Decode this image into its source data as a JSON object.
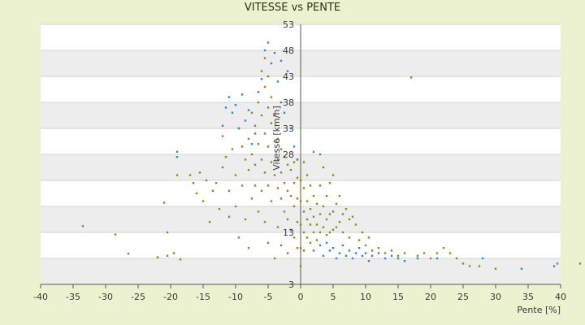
{
  "chart_data": {
    "type": "scatter",
    "title": "VITESSE vs PENTE",
    "xlabel": "Pente [%]",
    "ylabel": "Vitesse [km/h]",
    "xlim": [
      -40,
      40
    ],
    "ylim": [
      3,
      53
    ],
    "x_ticks": [
      -40,
      -35,
      -30,
      -25,
      -20,
      -15,
      -10,
      -5,
      0,
      5,
      10,
      15,
      20,
      25,
      30,
      35,
      40
    ],
    "y_ticks": [
      3,
      8,
      13,
      18,
      23,
      28,
      33,
      38,
      43,
      48,
      53
    ],
    "y_tick_labels": [
      "3",
      "",
      "13",
      "",
      "",
      "28",
      "33",
      "38",
      "43",
      "48",
      "53"
    ],
    "grid": true,
    "legend": "none",
    "colors": {
      "series_olive": "#7f8f1f",
      "series_blue": "#2e86d6",
      "band": "#ededed",
      "plot_bg": "#ffffff"
    },
    "series": [
      {
        "marker_color": "#7f8f1f",
        "points": [
          [
            -33.5,
            14.2
          ],
          [
            -28.5,
            12.6
          ],
          [
            -26.5,
            8.9
          ],
          [
            -22.0,
            8.2
          ],
          [
            -20.5,
            8.5
          ],
          [
            -19.5,
            9.0
          ],
          [
            -18.5,
            7.8
          ],
          [
            -21.0,
            18.7
          ],
          [
            -20.5,
            13.0
          ],
          [
            -19.0,
            24.0
          ],
          [
            -17.0,
            24.0
          ],
          [
            -16.5,
            22.5
          ],
          [
            -16.0,
            20.5
          ],
          [
            -15.5,
            24.5
          ],
          [
            -15.0,
            19.0
          ],
          [
            -14.5,
            23.0
          ],
          [
            -14.0,
            15.0
          ],
          [
            -13.5,
            21.0
          ],
          [
            -13.0,
            22.5
          ],
          [
            -12.5,
            17.5
          ],
          [
            -12.0,
            25.5
          ],
          [
            -12.0,
            31.5
          ],
          [
            -11.5,
            27.5
          ],
          [
            -11.0,
            21.0
          ],
          [
            -11.0,
            16.0
          ],
          [
            -10.5,
            29.0
          ],
          [
            -10.0,
            24.0
          ],
          [
            -10.0,
            18.0
          ],
          [
            -9.5,
            33.0
          ],
          [
            -9.5,
            12.0
          ],
          [
            -9.0,
            29.5
          ],
          [
            -9.0,
            22.0
          ],
          [
            -8.5,
            27.0
          ],
          [
            -8.5,
            15.5
          ],
          [
            -8.0,
            31.0
          ],
          [
            -8.0,
            25.0
          ],
          [
            -8.0,
            10.0
          ],
          [
            -7.5,
            36.0
          ],
          [
            -7.5,
            28.0
          ],
          [
            -7.5,
            19.5
          ],
          [
            -7.0,
            33.5
          ],
          [
            -7.0,
            26.0
          ],
          [
            -7.0,
            22.0
          ],
          [
            -6.5,
            38.0
          ],
          [
            -6.5,
            30.0
          ],
          [
            -6.5,
            17.0
          ],
          [
            -6.0,
            44.0
          ],
          [
            -6.0,
            35.5
          ],
          [
            -6.0,
            27.0
          ],
          [
            -6.0,
            21.0
          ],
          [
            -5.5,
            46.5
          ],
          [
            -5.5,
            41.0
          ],
          [
            -5.5,
            32.0
          ],
          [
            -5.5,
            24.5
          ],
          [
            -5.5,
            15.0
          ],
          [
            -5.0,
            43.0
          ],
          [
            -5.0,
            37.0
          ],
          [
            -5.0,
            29.5
          ],
          [
            -5.0,
            22.0
          ],
          [
            -5.0,
            11.0
          ],
          [
            -4.5,
            39.0
          ],
          [
            -4.5,
            34.0
          ],
          [
            -4.5,
            26.5
          ],
          [
            -4.5,
            19.0
          ],
          [
            -4.0,
            35.5
          ],
          [
            -4.0,
            30.5
          ],
          [
            -4.0,
            24.0
          ],
          [
            -4.0,
            8.0
          ],
          [
            -3.5,
            31.0
          ],
          [
            -3.5,
            27.0
          ],
          [
            -3.5,
            21.5
          ],
          [
            -3.5,
            14.0
          ],
          [
            -3.0,
            29.0
          ],
          [
            -3.0,
            24.5
          ],
          [
            -3.0,
            19.5
          ],
          [
            -3.0,
            10.5
          ],
          [
            -2.5,
            27.5
          ],
          [
            -2.5,
            22.5
          ],
          [
            -2.5,
            17.0
          ],
          [
            -2.0,
            26.0
          ],
          [
            -2.0,
            21.0
          ],
          [
            -2.0,
            15.5
          ],
          [
            -2.0,
            9.0
          ],
          [
            -1.5,
            25.0
          ],
          [
            -1.5,
            20.0
          ],
          [
            -1.5,
            13.5
          ],
          [
            -1.0,
            26.5
          ],
          [
            -1.0,
            22.5
          ],
          [
            -1.0,
            18.0
          ],
          [
            -1.0,
            12.0
          ],
          [
            -0.5,
            27.0
          ],
          [
            -0.5,
            23.5
          ],
          [
            -0.5,
            19.5
          ],
          [
            -0.5,
            15.0
          ],
          [
            -0.5,
            10.0
          ],
          [
            0.0,
            6.5
          ],
          [
            0.0,
            10.0
          ],
          [
            0.0,
            14.5
          ],
          [
            0.0,
            19.0
          ],
          [
            0.0,
            23.0
          ],
          [
            0.5,
            26.5
          ],
          [
            0.5,
            21.5
          ],
          [
            0.5,
            17.0
          ],
          [
            0.5,
            13.0
          ],
          [
            0.5,
            9.5
          ],
          [
            1.0,
            24.0
          ],
          [
            1.0,
            19.0
          ],
          [
            1.0,
            15.5
          ],
          [
            1.0,
            12.0
          ],
          [
            1.5,
            22.0
          ],
          [
            1.5,
            17.5
          ],
          [
            1.5,
            14.5
          ],
          [
            1.5,
            11.0
          ],
          [
            2.0,
            28.5
          ],
          [
            2.0,
            20.0
          ],
          [
            2.0,
            16.0
          ],
          [
            2.0,
            13.0
          ],
          [
            2.5,
            18.5
          ],
          [
            2.5,
            14.5
          ],
          [
            2.5,
            11.5
          ],
          [
            3.0,
            22.0
          ],
          [
            3.0,
            16.5
          ],
          [
            3.0,
            13.0
          ],
          [
            3.5,
            25.5
          ],
          [
            3.5,
            18.0
          ],
          [
            3.5,
            14.0
          ],
          [
            4.0,
            20.0
          ],
          [
            4.0,
            15.5
          ],
          [
            4.0,
            12.5
          ],
          [
            4.5,
            22.5
          ],
          [
            4.5,
            16.5
          ],
          [
            4.5,
            13.0
          ],
          [
            5.0,
            24.0
          ],
          [
            5.0,
            17.0
          ],
          [
            5.0,
            13.5
          ],
          [
            5.5,
            18.5
          ],
          [
            5.5,
            14.0
          ],
          [
            6.0,
            20.0
          ],
          [
            6.0,
            15.0
          ],
          [
            6.5,
            16.5
          ],
          [
            6.5,
            13.0
          ],
          [
            7.0,
            17.5
          ],
          [
            7.5,
            15.5
          ],
          [
            7.5,
            12.0
          ],
          [
            8.0,
            16.0
          ],
          [
            8.5,
            14.5
          ],
          [
            9.0,
            11.5
          ],
          [
            9.5,
            13.0
          ],
          [
            10.0,
            10.5
          ],
          [
            10.5,
            12.0
          ],
          [
            11.0,
            9.5
          ],
          [
            12.0,
            10.0
          ],
          [
            13.0,
            9.0
          ],
          [
            14.0,
            9.5
          ],
          [
            15.0,
            8.5
          ],
          [
            16.0,
            9.0
          ],
          [
            17.0,
            42.8
          ],
          [
            18.0,
            8.5
          ],
          [
            19.0,
            9.0
          ],
          [
            20.0,
            8.0
          ],
          [
            21.0,
            9.0
          ],
          [
            22.0,
            10.0
          ],
          [
            23.0,
            9.0
          ],
          [
            24.0,
            8.0
          ],
          [
            25.0,
            7.0
          ],
          [
            26.0,
            6.5
          ],
          [
            27.5,
            6.5
          ],
          [
            30.0,
            6.0
          ],
          [
            39.5,
            7.0
          ],
          [
            43.0,
            7.0
          ]
        ]
      },
      {
        "marker_color": "#2e86d6",
        "points": [
          [
            -19.0,
            28.5
          ],
          [
            -19.0,
            27.5
          ],
          [
            -12.0,
            33.5
          ],
          [
            -11.5,
            37.0
          ],
          [
            -11.0,
            39.0
          ],
          [
            -10.5,
            36.0
          ],
          [
            -10.0,
            37.5
          ],
          [
            -9.5,
            33.0
          ],
          [
            -9.0,
            39.5
          ],
          [
            -8.5,
            34.5
          ],
          [
            -8.0,
            36.5
          ],
          [
            -7.5,
            30.0
          ],
          [
            -7.0,
            32.0
          ],
          [
            -6.5,
            40.0
          ],
          [
            -6.0,
            42.5
          ],
          [
            -5.5,
            48.0
          ],
          [
            -5.0,
            49.5
          ],
          [
            -4.5,
            45.5
          ],
          [
            -4.0,
            47.5
          ],
          [
            -3.5,
            42.0
          ],
          [
            -3.0,
            38.0
          ],
          [
            -3.0,
            46.0
          ],
          [
            -2.5,
            36.0
          ],
          [
            -2.0,
            44.0
          ],
          [
            -1.5,
            33.0
          ],
          [
            -1.0,
            29.5
          ],
          [
            -0.5,
            27.0
          ],
          [
            3.0,
            28.0
          ],
          [
            2.0,
            9.5
          ],
          [
            3.0,
            10.5
          ],
          [
            3.5,
            8.5
          ],
          [
            4.0,
            11.0
          ],
          [
            4.5,
            9.5
          ],
          [
            5.0,
            10.0
          ],
          [
            5.5,
            8.0
          ],
          [
            6.0,
            9.0
          ],
          [
            6.5,
            10.5
          ],
          [
            7.0,
            8.5
          ],
          [
            7.5,
            9.5
          ],
          [
            8.0,
            8.0
          ],
          [
            8.5,
            9.0
          ],
          [
            9.0,
            10.0
          ],
          [
            9.5,
            8.5
          ],
          [
            10.0,
            9.0
          ],
          [
            10.5,
            7.5
          ],
          [
            11.0,
            8.5
          ],
          [
            12.0,
            9.0
          ],
          [
            13.0,
            8.0
          ],
          [
            14.0,
            8.5
          ],
          [
            15.0,
            8.0
          ],
          [
            16.0,
            7.5
          ],
          [
            18.0,
            8.0
          ],
          [
            21.0,
            8.0
          ],
          [
            28.0,
            8.0
          ],
          [
            34.0,
            6.0
          ],
          [
            39.0,
            6.5
          ]
        ]
      }
    ]
  }
}
